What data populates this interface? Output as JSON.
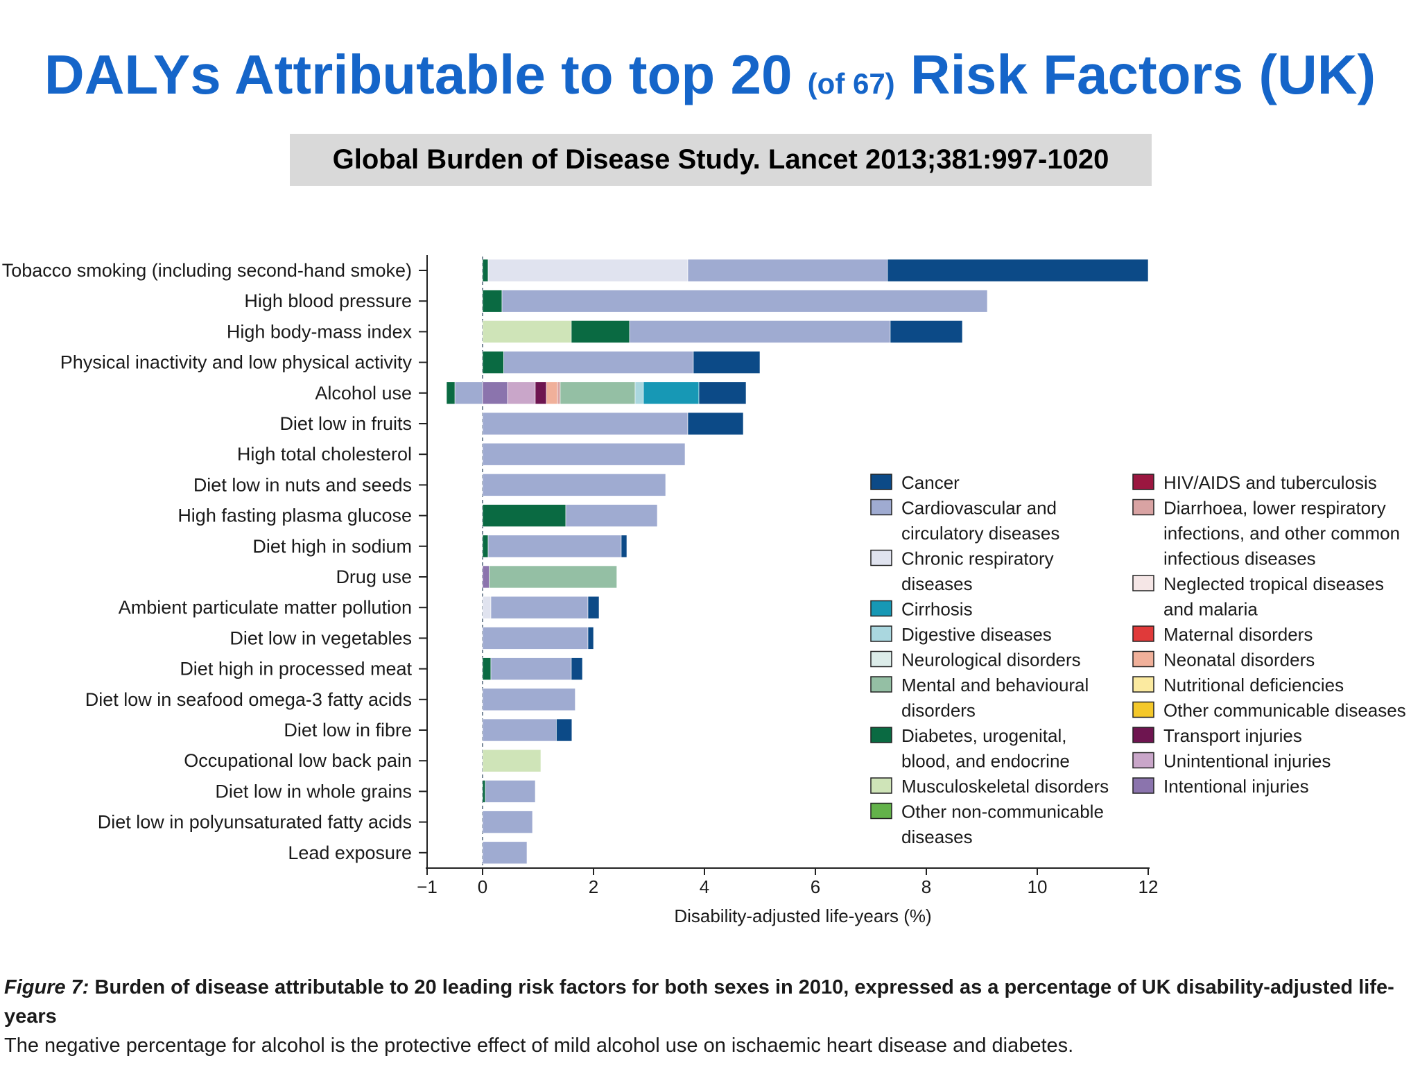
{
  "header": {
    "title_part1": "DALYs Attributable to top 20",
    "title_small": "(of 67)",
    "title_part2": "Risk Factors (UK)",
    "citation": "Global Burden of Disease Study. Lancet 2013;381:997-1020"
  },
  "caption": {
    "figure_label": "Figure 7:",
    "figure_title": "Burden of disease attributable to 20 leading risk factors for both sexes in 2010, expressed as a percentage of UK disability-adjusted life-years",
    "note": "The negative percentage for alcohol is the protective effect of mild alcohol use on ischaemic heart disease and diabetes."
  },
  "chart_data": {
    "type": "bar",
    "orientation": "horizontal",
    "stacked": true,
    "xlabel": "Disability-adjusted life-years (%)",
    "xlim": [
      -1,
      12
    ],
    "xticks": [
      -1,
      0,
      2,
      4,
      6,
      8,
      10,
      12
    ],
    "xtick_labels": [
      "−1",
      "0",
      "2",
      "4",
      "6",
      "8",
      "10",
      "12"
    ],
    "legend_position": "lower-right",
    "categories": [
      "Tobacco smoking (including second-hand smoke)",
      "High blood pressure",
      "High body-mass index",
      "Physical inactivity and low physical activity",
      "Alcohol use",
      "Diet low in fruits",
      "High total cholesterol",
      "Diet low in nuts and seeds",
      "High fasting plasma glucose",
      "Diet high in sodium",
      "Drug use",
      "Ambient particulate matter pollution",
      "Diet low in vegetables",
      "Diet high in processed meat",
      "Diet low in seafood omega-3 fatty acids",
      "Diet low in fibre",
      "Occupational low back pain",
      "Diet low in whole grains",
      "Diet low in polyunsaturated fatty acids",
      "Lead exposure"
    ],
    "causes": [
      {
        "name": "Cancer",
        "color": "#0c4a87",
        "column": 1
      },
      {
        "name": "Cardiovascular and circulatory diseases",
        "color": "#9fabd1",
        "column": 1
      },
      {
        "name": "Chronic respiratory diseases",
        "color": "#e0e3ef",
        "column": 1
      },
      {
        "name": "Cirrhosis",
        "color": "#1798b5",
        "column": 1
      },
      {
        "name": "Digestive diseases",
        "color": "#aad7df",
        "column": 1
      },
      {
        "name": "Neurological disorders",
        "color": "#dcece9",
        "column": 1
      },
      {
        "name": "Mental and behavioural disorders",
        "color": "#94bfa4",
        "column": 1
      },
      {
        "name": "Diabetes, urogenital, blood, and endocrine",
        "color": "#0a6a42",
        "column": 1
      },
      {
        "name": "Musculoskeletal disorders",
        "color": "#cfe4b8",
        "column": 1
      },
      {
        "name": "Other non-communicable diseases",
        "color": "#63b24a",
        "column": 1
      },
      {
        "name": "HIV/AIDS and tuberculosis",
        "color": "#9b1740",
        "column": 2
      },
      {
        "name": "Diarrhoea, lower respiratory infections, and other common infectious diseases",
        "color": "#d9a3a3",
        "column": 2
      },
      {
        "name": "Neglected tropical diseases and malaria",
        "color": "#f5e6e6",
        "column": 2
      },
      {
        "name": "Maternal disorders",
        "color": "#e03a3a",
        "column": 2
      },
      {
        "name": "Neonatal disorders",
        "color": "#f0b09a",
        "column": 2
      },
      {
        "name": "Nutritional deficiencies",
        "color": "#fbeaa0",
        "column": 2
      },
      {
        "name": "Other communicable diseases",
        "color": "#f4c82a",
        "column": 2
      },
      {
        "name": "Transport injuries",
        "color": "#6e1550",
        "column": 2
      },
      {
        "name": "Unintentional injuries",
        "color": "#c9a6c9",
        "column": 2
      },
      {
        "name": "Intentional injuries",
        "color": "#8b74ad",
        "column": 2
      }
    ],
    "legend_columns": [
      [
        [
          "Cancer"
        ],
        [
          "Cardiovascular and",
          "circulatory diseases"
        ],
        [
          "Chronic respiratory",
          "diseases"
        ],
        [
          "Cirrhosis"
        ],
        [
          "Digestive diseases"
        ],
        [
          "Neurological disorders"
        ],
        [
          "Mental and behavioural",
          "disorders"
        ],
        [
          "Diabetes, urogenital,",
          "blood, and endocrine"
        ],
        [
          "Musculoskeletal disorders"
        ],
        [
          "Other non-communicable",
          "diseases"
        ]
      ],
      [
        [
          "HIV/AIDS and tuberculosis"
        ],
        [
          "Diarrhoea, lower respiratory",
          "infections, and other common",
          "infectious diseases"
        ],
        [
          "Neglected tropical diseases",
          "and malaria"
        ],
        [
          "Maternal disorders"
        ],
        [
          "Neonatal disorders"
        ],
        [
          "Nutritional deficiencies"
        ],
        [
          "Other communicable diseases"
        ],
        [
          "Transport injuries"
        ],
        [
          "Unintentional injuries"
        ],
        [
          "Intentional injuries"
        ]
      ]
    ],
    "bars": [
      {
        "category": "Tobacco smoking (including second-hand smoke)",
        "segments": [
          {
            "cause": "Diabetes, urogenital, blood, and endocrine",
            "value": 0.1
          },
          {
            "cause": "Chronic respiratory diseases",
            "value": 3.6
          },
          {
            "cause": "Cardiovascular and circulatory diseases",
            "value": 3.6
          },
          {
            "cause": "Cancer",
            "value": 4.7
          }
        ]
      },
      {
        "category": "High blood pressure",
        "segments": [
          {
            "cause": "Diabetes, urogenital, blood, and endocrine",
            "value": 0.35
          },
          {
            "cause": "Cardiovascular and circulatory diseases",
            "value": 8.75
          }
        ]
      },
      {
        "category": "High body-mass index",
        "segments": [
          {
            "cause": "Musculoskeletal disorders",
            "value": 1.6
          },
          {
            "cause": "Diabetes, urogenital, blood, and endocrine",
            "value": 1.05
          },
          {
            "cause": "Cardiovascular and circulatory diseases",
            "value": 4.7
          },
          {
            "cause": "Cancer",
            "value": 1.3
          }
        ]
      },
      {
        "category": "Physical inactivity and low physical activity",
        "segments": [
          {
            "cause": "Diabetes, urogenital, blood, and endocrine",
            "value": 0.38
          },
          {
            "cause": "Cardiovascular and circulatory diseases",
            "value": 3.42
          },
          {
            "cause": "Cancer",
            "value": 1.2
          }
        ]
      },
      {
        "category": "Alcohol use",
        "segments": [
          {
            "cause": "Cardiovascular and circulatory diseases",
            "value": -0.5
          },
          {
            "cause": "Diabetes, urogenital, blood, and endocrine",
            "value": -0.15
          },
          {
            "cause": "Intentional injuries",
            "value": 0.45
          },
          {
            "cause": "Unintentional injuries",
            "value": 0.5
          },
          {
            "cause": "Transport injuries",
            "value": 0.2
          },
          {
            "cause": "Neonatal disorders",
            "value": 0.2
          },
          {
            "cause": "Diarrhoea, lower respiratory infections, and other common infectious diseases",
            "value": 0.05
          },
          {
            "cause": "Mental and behavioural disorders",
            "value": 1.35
          },
          {
            "cause": "Digestive diseases",
            "value": 0.15
          },
          {
            "cause": "Cirrhosis",
            "value": 1.0
          },
          {
            "cause": "Cancer",
            "value": 0.85
          }
        ]
      },
      {
        "category": "Diet low in fruits",
        "segments": [
          {
            "cause": "Cardiovascular and circulatory diseases",
            "value": 3.7
          },
          {
            "cause": "Cancer",
            "value": 1.0
          }
        ]
      },
      {
        "category": "High total cholesterol",
        "segments": [
          {
            "cause": "Cardiovascular and circulatory diseases",
            "value": 3.65
          }
        ]
      },
      {
        "category": "Diet low in nuts and seeds",
        "segments": [
          {
            "cause": "Cardiovascular and circulatory diseases",
            "value": 3.3
          }
        ]
      },
      {
        "category": "High fasting plasma glucose",
        "segments": [
          {
            "cause": "Diabetes, urogenital, blood, and endocrine",
            "value": 1.5
          },
          {
            "cause": "Cardiovascular and circulatory diseases",
            "value": 1.65
          }
        ]
      },
      {
        "category": "Diet high in sodium",
        "segments": [
          {
            "cause": "Diabetes, urogenital, blood, and endocrine",
            "value": 0.1
          },
          {
            "cause": "Cardiovascular and circulatory diseases",
            "value": 2.4
          },
          {
            "cause": "Cancer",
            "value": 0.1
          }
        ]
      },
      {
        "category": "Drug use",
        "segments": [
          {
            "cause": "Intentional injuries",
            "value": 0.12
          },
          {
            "cause": "Mental and behavioural disorders",
            "value": 2.3
          }
        ]
      },
      {
        "category": "Ambient particulate matter pollution",
        "segments": [
          {
            "cause": "Chronic respiratory diseases",
            "value": 0.15
          },
          {
            "cause": "Cardiovascular and circulatory diseases",
            "value": 1.75
          },
          {
            "cause": "Cancer",
            "value": 0.2
          }
        ]
      },
      {
        "category": "Diet low in vegetables",
        "segments": [
          {
            "cause": "Cardiovascular and circulatory diseases",
            "value": 1.9
          },
          {
            "cause": "Cancer",
            "value": 0.1
          }
        ]
      },
      {
        "category": "Diet high in processed meat",
        "segments": [
          {
            "cause": "Diabetes, urogenital, blood, and endocrine",
            "value": 0.15
          },
          {
            "cause": "Cardiovascular and circulatory diseases",
            "value": 1.45
          },
          {
            "cause": "Cancer",
            "value": 0.2
          }
        ]
      },
      {
        "category": "Diet low in seafood omega-3 fatty acids",
        "segments": [
          {
            "cause": "Cardiovascular and circulatory diseases",
            "value": 1.67
          }
        ]
      },
      {
        "category": "Diet low in fibre",
        "segments": [
          {
            "cause": "Cardiovascular and circulatory diseases",
            "value": 1.33
          },
          {
            "cause": "Cancer",
            "value": 0.28
          }
        ]
      },
      {
        "category": "Occupational low back pain",
        "segments": [
          {
            "cause": "Musculoskeletal disorders",
            "value": 1.05
          }
        ]
      },
      {
        "category": "Diet low in whole grains",
        "segments": [
          {
            "cause": "Diabetes, urogenital, blood, and endocrine",
            "value": 0.05
          },
          {
            "cause": "Cardiovascular and circulatory diseases",
            "value": 0.9
          }
        ]
      },
      {
        "category": "Diet low in polyunsaturated fatty acids",
        "segments": [
          {
            "cause": "Cardiovascular and circulatory diseases",
            "value": 0.9
          }
        ]
      },
      {
        "category": "Lead exposure",
        "segments": [
          {
            "cause": "Cardiovascular and circulatory diseases",
            "value": 0.8
          }
        ]
      }
    ]
  }
}
